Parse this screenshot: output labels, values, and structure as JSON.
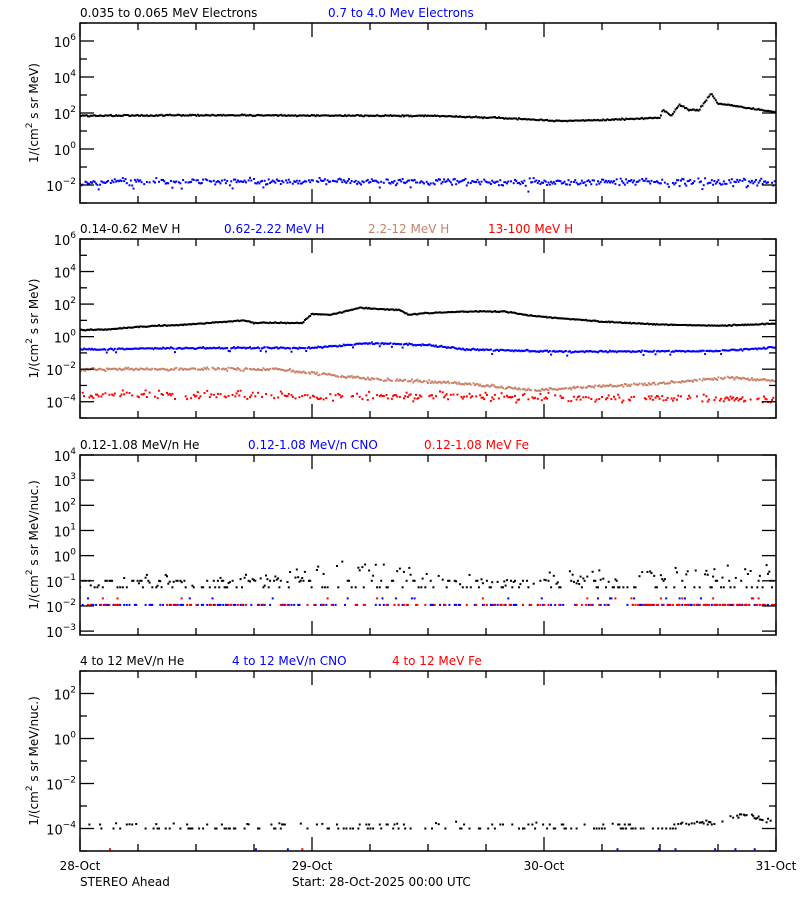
{
  "chart_data": [
    {
      "type": "scatter",
      "y_scale": "log",
      "ylim": [
        0.001,
        10000000
      ],
      "ytick_exponents": [
        -2,
        0,
        2,
        4,
        6
      ],
      "ylabel": {
        "prefix": "1/(cm",
        "sup": "2",
        "suffix": " s sr MeV)"
      },
      "series": [
        {
          "name": "0.035 to 0.065 MeV Electrons",
          "color": "#000000",
          "trend": [
            [
              "2025-10-28T00:00",
              70
            ],
            [
              "2025-10-28T12:00",
              75
            ],
            [
              "2025-10-29T00:00",
              72
            ],
            [
              "2025-10-29T12:00",
              70
            ],
            [
              "2025-10-29T19:00",
              55
            ],
            [
              "2025-10-30T00:00",
              40
            ],
            [
              "2025-10-30T02:00",
              36
            ],
            [
              "2025-10-30T06:00",
              40
            ],
            [
              "2025-10-30T10:00",
              50
            ],
            [
              "2025-10-30T12:00",
              55
            ],
            [
              "2025-10-30T12:18",
              150
            ],
            [
              "2025-10-30T13:12",
              70
            ],
            [
              "2025-10-30T14:00",
              300
            ],
            [
              "2025-10-30T15:00",
              150
            ],
            [
              "2025-10-30T16:00",
              140
            ],
            [
              "2025-10-30T17:18",
              1200
            ],
            [
              "2025-10-30T18:00",
              330
            ],
            [
              "2025-10-30T19:12",
              280
            ],
            [
              "2025-10-30T22:18",
              150
            ],
            [
              "2025-10-31T00:00",
              110
            ]
          ]
        },
        {
          "name": "0.7 to 4.0 Mev Electrons",
          "color": "#0000ff",
          "trend": [
            [
              "2025-10-28T00:00",
              0.015
            ],
            [
              "2025-10-29T00:00",
              0.016
            ],
            [
              "2025-10-30T00:00",
              0.014
            ],
            [
              "2025-10-31T00:00",
              0.015
            ]
          ]
        }
      ]
    },
    {
      "type": "scatter",
      "y_scale": "log",
      "ylim": [
        1e-05,
        1000000
      ],
      "ytick_exponents": [
        -4,
        -2,
        0,
        2,
        4,
        6
      ],
      "ylabel": {
        "prefix": "1/(cm",
        "sup": "2",
        "suffix": " s sr MeV)"
      },
      "series": [
        {
          "name": "0.14-0.62 MeV H",
          "color": "#000000",
          "trend": [
            [
              "2025-10-28T00:00",
              2.5
            ],
            [
              "2025-10-28T03:00",
              2.8
            ],
            [
              "2025-10-28T06:00",
              4
            ],
            [
              "2025-10-28T12:00",
              6
            ],
            [
              "2025-10-28T17:00",
              10
            ],
            [
              "2025-10-28T18:00",
              7
            ],
            [
              "2025-10-28T23:00",
              7
            ],
            [
              "2025-10-29T00:00",
              25
            ],
            [
              "2025-10-29T02:00",
              22
            ],
            [
              "2025-10-29T05:00",
              60
            ],
            [
              "2025-10-29T08:00",
              45
            ],
            [
              "2025-10-29T09:00",
              45
            ],
            [
              "2025-10-29T10:00",
              22
            ],
            [
              "2025-10-29T12:00",
              28
            ],
            [
              "2025-10-29T16:00",
              35
            ],
            [
              "2025-10-29T20:00",
              35
            ],
            [
              "2025-10-29T23:00",
              18
            ],
            [
              "2025-10-30T06:00",
              8.3
            ],
            [
              "2025-10-30T12:00",
              5.5
            ],
            [
              "2025-10-30T18:00",
              4.7
            ],
            [
              "2025-10-31T00:00",
              6.3
            ]
          ]
        },
        {
          "name": "0.62-2.22 MeV H",
          "color": "#0000ff",
          "trend": [
            [
              "2025-10-28T00:00",
              0.16
            ],
            [
              "2025-10-28T12:00",
              0.2
            ],
            [
              "2025-10-29T00:00",
              0.2
            ],
            [
              "2025-10-29T06:00",
              0.4
            ],
            [
              "2025-10-29T12:00",
              0.3
            ],
            [
              "2025-10-29T16:00",
              0.16
            ],
            [
              "2025-10-30T02:00",
              0.12
            ],
            [
              "2025-10-30T18:00",
              0.13
            ],
            [
              "2025-10-31T00:00",
              0.22
            ]
          ]
        },
        {
          "name": "2.2-12 MeV H",
          "color": "#c8826a",
          "trend": [
            [
              "2025-10-28T00:00",
              0.01
            ],
            [
              "2025-10-28T20:00",
              0.01
            ],
            [
              "2025-10-29T06:00",
              0.0025
            ],
            [
              "2025-10-29T16:00",
              0.0013
            ],
            [
              "2025-10-29T23:00",
              0.0005
            ],
            [
              "2025-10-30T07:00",
              0.001
            ],
            [
              "2025-10-30T12:00",
              0.0013
            ],
            [
              "2025-10-30T19:00",
              0.003
            ],
            [
              "2025-10-31T00:00",
              0.002
            ]
          ]
        },
        {
          "name": "13-100 MeV H",
          "color": "#ff0000",
          "trend": [
            [
              "2025-10-28T00:00",
              0.0003
            ],
            [
              "2025-10-29T00:00",
              0.00022
            ],
            [
              "2025-10-31T00:00",
              0.00015
            ]
          ]
        }
      ]
    },
    {
      "type": "scatter",
      "y_scale": "log",
      "ylim": [
        0.0007,
        10000
      ],
      "ytick_exponents": [
        -3,
        -2,
        -1,
        0,
        1,
        2,
        3,
        4
      ],
      "ylabel": {
        "prefix": "1/(cm",
        "sup": "2",
        "suffix": " s sr MeV/nuc.)"
      },
      "series": [
        {
          "name": "0.12-1.08 MeV/n He",
          "color": "#000000",
          "trend": [
            [
              "2025-10-28T00:00",
              0.06
            ],
            [
              "2025-10-28T12:00",
              0.12
            ],
            [
              "2025-10-28T23:00",
              0.12
            ],
            [
              "2025-10-29T00:00",
              0.3
            ],
            [
              "2025-10-29T06:00",
              0.35
            ],
            [
              "2025-10-29T12:00",
              0.12
            ],
            [
              "2025-10-30T00:00",
              0.08
            ],
            [
              "2025-10-30T07:00",
              0.15
            ],
            [
              "2025-10-31T00:00",
              0.25
            ]
          ]
        },
        {
          "name": "0.12-1.08 MeV/n CNO",
          "color": "#0000ff",
          "trend": [
            [
              "2025-10-28T00:00",
              0.011
            ],
            [
              "2025-10-31T00:00",
              0.011
            ]
          ]
        },
        {
          "name": "0.12-1.08 MeV Fe",
          "color": "#ff0000",
          "trend": [
            [
              "2025-10-28T00:00",
              0.011
            ],
            [
              "2025-10-31T00:00",
              0.011
            ]
          ]
        }
      ]
    },
    {
      "type": "scatter",
      "y_scale": "log",
      "ylim": [
        1e-05,
        1000
      ],
      "ytick_exponents": [
        -4,
        -2,
        0,
        2
      ],
      "ylabel": {
        "prefix": "1/(cm",
        "sup": "2",
        "suffix": " s sr MeV/nuc.)"
      },
      "series": [
        {
          "name": "4 to 12 MeV/n He",
          "color": "#000000",
          "trend": [
            [
              "2025-10-28T00:00",
              0.00015
            ],
            [
              "2025-10-30T12:00",
              0.00013
            ],
            [
              "2025-10-30T18:00",
              0.0002
            ],
            [
              "2025-10-30T21:00",
              0.0004
            ],
            [
              "2025-10-31T00:00",
              0.00018
            ]
          ]
        },
        {
          "name": "4 to 12 MeV/n CNO",
          "color": "#0000ff",
          "points": [
            [
              "2025-10-28T18:12",
              1.2e-05
            ],
            [
              "2025-10-28T21:30",
              1.2e-05
            ],
            [
              "2025-10-30T07:36",
              1.2e-05
            ],
            [
              "2025-10-30T11:54",
              1.2e-05
            ],
            [
              "2025-10-30T13:36",
              1.2e-05
            ],
            [
              "2025-10-30T17:42",
              1.2e-05
            ],
            [
              "2025-10-30T19:48",
              1.2e-05
            ],
            [
              "2025-10-30T21:48",
              1.2e-05
            ]
          ]
        },
        {
          "name": "4 to 12 MeV Fe",
          "color": "#ff0000",
          "points": [
            [
              "2025-10-28T03:06",
              1.2e-05
            ],
            [
              "2025-10-28T23:00",
              1.2e-05
            ]
          ]
        }
      ]
    }
  ],
  "x_axis": {
    "range": [
      "2025-10-28T00:00",
      "2025-10-31T00:00"
    ],
    "tick_labels": [
      "28-Oct",
      "29-Oct",
      "30-Oct",
      "31-Oct"
    ],
    "minor_tick_hours": 6
  },
  "footer": {
    "spacecraft": "STEREO Ahead",
    "start": "Start: 28-Oct-2025 00:00 UTC"
  }
}
